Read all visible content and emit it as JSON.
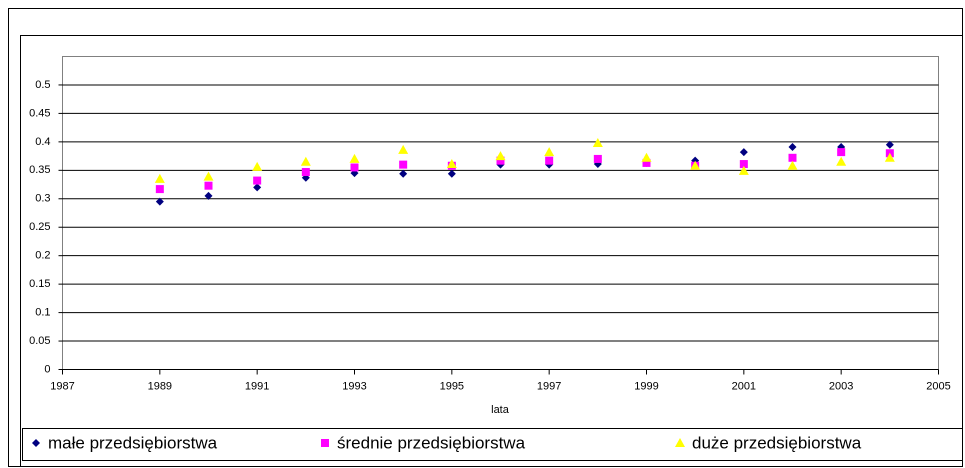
{
  "chart_data": {
    "type": "scatter",
    "x_label": "lata",
    "xlim": [
      1987,
      2005
    ],
    "xticks": [
      1987,
      1989,
      1991,
      1993,
      1995,
      1997,
      1999,
      2001,
      2003,
      2005
    ],
    "ylim": [
      0,
      0.55
    ],
    "yticks": [
      0,
      0.05,
      0.1,
      0.15,
      0.2,
      0.25,
      0.3,
      0.35,
      0.4,
      0.45,
      0.5
    ],
    "grid": true,
    "legend": "bottom",
    "x": [
      1989,
      1990,
      1991,
      1992,
      1993,
      1994,
      1995,
      1996,
      1997,
      1998,
      1999,
      2000,
      2001,
      2002,
      2003,
      2004
    ],
    "series": [
      {
        "name": "małe przedsiębiorstwa",
        "color": "#000080",
        "marker": "diamond",
        "values": [
          0.295,
          0.305,
          0.32,
          0.337,
          0.345,
          0.344,
          0.344,
          0.36,
          0.36,
          0.361,
          0.363,
          0.367,
          0.382,
          0.391,
          0.391,
          0.395
        ]
      },
      {
        "name": "średnie przedsiębiorstwa",
        "color": "#ff00ff",
        "marker": "square",
        "values": [
          0.317,
          0.323,
          0.332,
          0.347,
          0.355,
          0.36,
          0.358,
          0.367,
          0.367,
          0.37,
          0.363,
          0.358,
          0.361,
          0.372,
          0.382,
          0.38
        ]
      },
      {
        "name": "duże przedsiębiorstwa",
        "color": "#ffff00",
        "marker": "triangle",
        "values": [
          0.335,
          0.339,
          0.356,
          0.365,
          0.37,
          0.386,
          0.361,
          0.375,
          0.382,
          0.398,
          0.372,
          0.358,
          0.349,
          0.358,
          0.365,
          0.372
        ]
      }
    ]
  }
}
